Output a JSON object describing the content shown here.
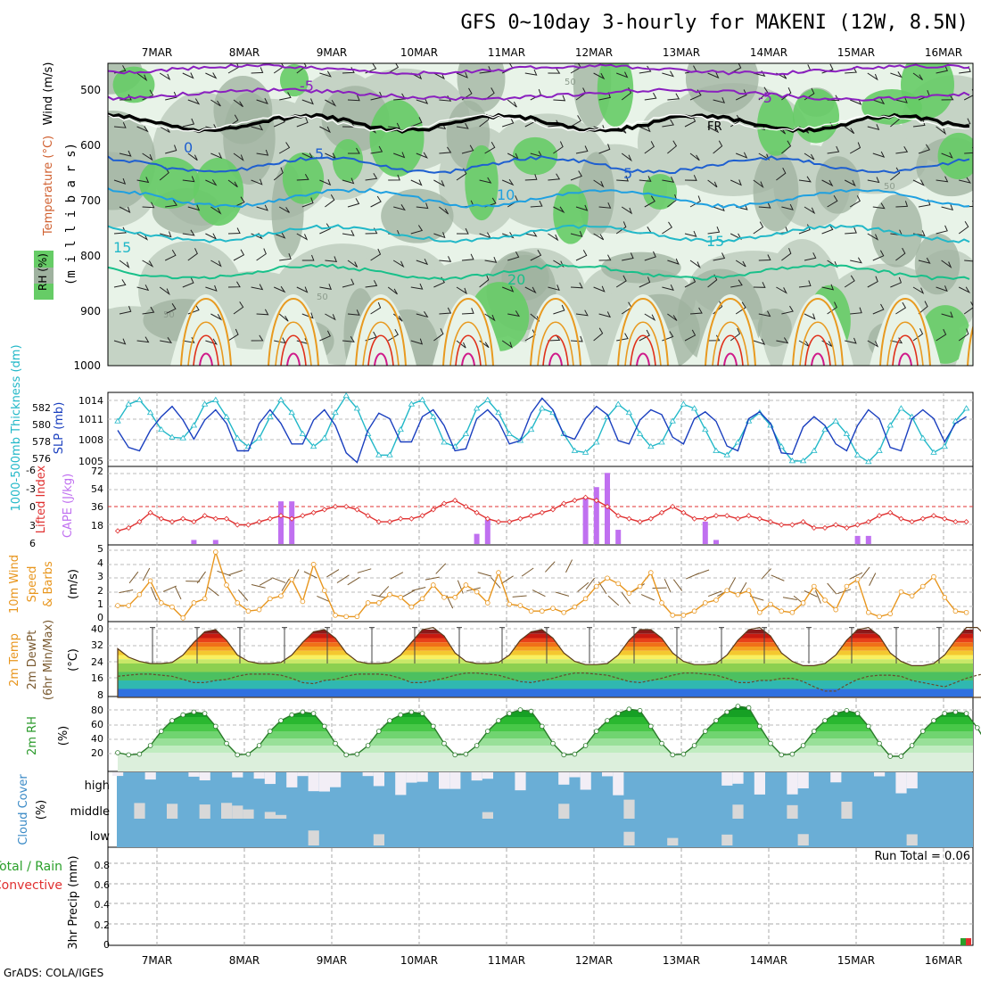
{
  "title": "GFS 0~10day 3-hourly for MAKENI (12W, 8.5N)",
  "footer": "GrADS: COLA/IGES",
  "dates": [
    "7MAR",
    "8MAR",
    "9MAR",
    "10MAR",
    "11MAR",
    "12MAR",
    "13MAR",
    "14MAR",
    "15MAR",
    "16MAR"
  ],
  "colors": {
    "rh_dark": "#9fb29f",
    "rh_mid": "#c5d3c5",
    "rh_light": "#e8f3e8",
    "rh_green": "#66cc66",
    "t_purple": "#8a1fbf",
    "t_black": "#000000",
    "t_blue": "#1e5fd0",
    "t_lightblue": "#1fa0e0",
    "t_cyan": "#22b8c8",
    "t_teal": "#19c08a",
    "t_orange": "#e89a20",
    "t_red": "#e0301a",
    "t_magenta": "#d01a8a",
    "slp": "#1a3fbf",
    "thickness": "#22b8c8",
    "lifted": "#e03030",
    "cape": "#c070f0",
    "wind10": "#e8961e",
    "cloud": "#6aaed6",
    "cloud_gap": "#f2eef6",
    "cloud_gap_low": "#d8d8d8"
  },
  "panel_upper": {
    "y_title": "(m i l l i b a r s)",
    "legend_wind": "Wind (m/s)",
    "legend_temp": "Temperature (°C)",
    "legend_rh": "RH (%)",
    "yticks": [
      "500",
      "600",
      "700",
      "800",
      "900",
      "1000"
    ],
    "contour_labels": {
      "m5a": "-5",
      "m5b": "-5",
      "fr": "FR",
      "z": "0",
      "p5a": "5",
      "p5b": "5",
      "p10": "10",
      "p15a": "15",
      "p15b": "15",
      "p20": "20",
      "rh50a": "50",
      "rh50b": "50",
      "rh50c": "50",
      "rh50d": "50"
    }
  },
  "panel_slp": {
    "label_thickness": "1000-500mb Thickness (dm)",
    "label_slp": "SLP (mb)",
    "left_ticks": [
      "582",
      "580",
      "578",
      "576"
    ],
    "right_ticks": [
      "1014",
      "1011",
      "1008",
      "1005"
    ]
  },
  "panel_cape": {
    "label_li": "Lifted Index",
    "label_cape": "CAPE (J/kg)",
    "left_ticks": [
      "-6",
      "-3",
      "0",
      "3",
      "6"
    ],
    "right_ticks": [
      "72",
      "54",
      "36",
      "18"
    ]
  },
  "panel_wind": {
    "label_1": "10m Wind",
    "label_2": "Speed",
    "label_3": "& Barbs",
    "unit": "(m/s)",
    "ticks": [
      "5",
      "4",
      "3",
      "2",
      "1",
      "0"
    ]
  },
  "panel_temp": {
    "label_1": "2m Temp",
    "label_2": "2m DewPt",
    "label_3": "(6hr Min/Max)",
    "unit": "(°C)",
    "ticks": [
      "40",
      "32",
      "24",
      "16",
      "8"
    ]
  },
  "panel_rh": {
    "label": "2m RH",
    "unit": "(%)",
    "ticks": [
      "80",
      "60",
      "40",
      "20"
    ]
  },
  "panel_cloud": {
    "label": "Cloud Cover",
    "unit": "(%)",
    "levels": [
      "high",
      "middle",
      "low"
    ]
  },
  "panel_precip": {
    "label_total": "Total / Rain",
    "label_conv": "Convective",
    "label_axis": "3hr Precip (mm)",
    "run_total": "Run Total = 0.06",
    "ticks": [
      "0.8",
      "0.6",
      "0.4",
      "0.2",
      "0"
    ]
  },
  "chart_data": [
    {
      "type": "line",
      "title": "SLP (mb) / 1000-500mb Thickness (dm)",
      "x_unit": "3-hourly steps from 7MAR 00Z",
      "series": [
        {
          "name": "SLP (mb)",
          "values": [
            1009.5,
            1007,
            1006.5,
            1009.5,
            1011.5,
            1013,
            1011,
            1008.2,
            1011,
            1012.5,
            1010.5,
            1006.5,
            1006.5,
            1010.5,
            1012.5,
            1010.5,
            1007.5,
            1007.5,
            1011,
            1012.5,
            1010.2,
            1006.2,
            1004.8,
            1009.5,
            1012,
            1011.2,
            1007.8,
            1007.8,
            1011.5,
            1012.5,
            1010.2,
            1006.5,
            1006.8,
            1011.2,
            1012.5,
            1010.8,
            1007.5,
            1008,
            1012,
            1014.2,
            1012.5,
            1008.8,
            1008.2,
            1011.2,
            1013,
            1011.8,
            1008,
            1007.5,
            1011,
            1012.5,
            1011.8,
            1008.5,
            1007.5,
            1011.2,
            1012.2,
            1010.8,
            1007.2,
            1006.5,
            1011.2,
            1012.2,
            1010.5,
            1006.2,
            1006,
            1010,
            1011.5,
            1010.2,
            1007.5,
            1006.5,
            1010.2,
            1012.5,
            1011.2,
            1007,
            1006.5,
            1011.2,
            1012.5,
            1011.2,
            1007.8,
            1010.5,
            1011.5
          ]
        },
        {
          "name": "1000-500mb Thickness (dm)",
          "values": [
            580.5,
            582.5,
            583,
            581.5,
            579.5,
            578.6,
            578.5,
            580,
            582.5,
            583,
            581,
            578.5,
            577.5,
            578.5,
            581,
            583,
            581.5,
            579,
            577.5,
            578.5,
            581.5,
            583.5,
            582,
            579,
            576.5,
            576.5,
            579.5,
            582.5,
            583,
            581,
            578,
            577.5,
            579,
            582,
            583,
            581.5,
            579,
            578.2,
            579.5,
            582,
            581.5,
            579,
            577,
            576.8,
            578,
            581,
            582.5,
            581.5,
            579,
            577.5,
            578,
            580.5,
            582.5,
            582,
            579.5,
            577,
            576.5,
            578,
            580.5,
            581.5,
            580,
            577.5,
            575.8,
            575.8,
            577,
            579.5,
            580.5,
            579,
            576.5,
            575.7,
            577,
            580,
            582,
            581,
            578.5,
            576.8,
            577.5,
            580.5,
            582
          ]
        }
      ]
    },
    {
      "type": "bar",
      "title": "CAPE (J/kg) / Lifted Index",
      "series": [
        {
          "name": "CAPE (J/kg)",
          "values": [
            0,
            0,
            0,
            0,
            0,
            0,
            0,
            4,
            0,
            4,
            0,
            0,
            0,
            0,
            0,
            42,
            42,
            0,
            0,
            0,
            0,
            0,
            0,
            0,
            0,
            0,
            0,
            0,
            0,
            0,
            0,
            0,
            0,
            10,
            24,
            0,
            0,
            0,
            0,
            0,
            0,
            0,
            0,
            46,
            56,
            70,
            14,
            0,
            0,
            0,
            0,
            0,
            0,
            0,
            22,
            4,
            0,
            0,
            0,
            0,
            0,
            0,
            0,
            0,
            0,
            0,
            0,
            0,
            8,
            8,
            0,
            0,
            0,
            0,
            0,
            0,
            0,
            0,
            0
          ]
        },
        {
          "name": "Lifted Index",
          "values": [
            4,
            3.5,
            2.5,
            1,
            2,
            2.5,
            2,
            2.5,
            1.5,
            2,
            2,
            3,
            3,
            2.5,
            2,
            1.5,
            2,
            1.5,
            1,
            0.5,
            0,
            0,
            0.5,
            1.5,
            2.5,
            2.5,
            2,
            2,
            1.5,
            0.5,
            -0.5,
            -1,
            0,
            1,
            2,
            2.5,
            2.5,
            2,
            1.5,
            1,
            0.5,
            -0.5,
            -1,
            -1.5,
            -1,
            0,
            1.5,
            2,
            2.5,
            2,
            1,
            0,
            1,
            2,
            2,
            1.5,
            1.5,
            2,
            1.5,
            2,
            2.5,
            3,
            3,
            2.5,
            3.5,
            3.5,
            3,
            3.5,
            3,
            2.5,
            1.5,
            1,
            2,
            2.5,
            2,
            1.5,
            2,
            2.5,
            2.5
          ]
        }
      ]
    },
    {
      "type": "line",
      "title": "10m Wind Speed (m/s)",
      "series": [
        {
          "name": "10m Wind Speed",
          "values": [
            1.1,
            1.1,
            1.9,
            2.9,
            1.3,
            1.0,
            0.2,
            1.3,
            1.6,
            5.0,
            2.6,
            1.3,
            0.7,
            0.8,
            1.6,
            1.8,
            3.0,
            1.4,
            4.1,
            2.2,
            0.4,
            0.3,
            0.3,
            1.3,
            1.3,
            1.9,
            1.7,
            1.0,
            1.6,
            2.6,
            1.7,
            1.7,
            2.6,
            2.1,
            1.3,
            3.5,
            1.2,
            1.1,
            0.7,
            0.7,
            0.9,
            0.6,
            1.0,
            1.6,
            2.5,
            3.1,
            2.7,
            2.0,
            2.5,
            3.5,
            1.3,
            0.4,
            0.4,
            0.7,
            1.3,
            1.5,
            2.2,
            1.9,
            2.2,
            0.6,
            1.2,
            0.7,
            0.6,
            1.3,
            2.5,
            1.5,
            0.8,
            2.5,
            3.0,
            0.6,
            0.3,
            0.5,
            2.1,
            1.8,
            2.5,
            3.2,
            1.7,
            0.7,
            0.6
          ]
        }
      ]
    },
    {
      "type": "area",
      "title": "2m Temp / 2m DewPt (°C)",
      "series": [
        {
          "name": "2m Temp",
          "values": [
            31,
            27,
            25,
            24,
            24,
            24.5,
            28,
            34,
            39,
            40,
            35,
            28,
            25,
            24,
            24,
            24.5,
            28,
            34,
            39,
            40,
            36,
            29,
            25,
            24,
            24,
            24.5,
            28,
            34,
            40,
            41,
            37,
            29,
            25,
            24,
            24,
            24.5,
            28,
            35,
            39,
            40,
            36,
            29,
            25,
            23.5,
            23.5,
            24,
            28,
            35,
            40,
            40,
            36,
            29,
            25,
            23.5,
            23.5,
            24,
            28,
            35,
            40,
            41,
            37,
            29,
            25,
            23,
            23,
            24,
            28,
            35,
            40,
            41,
            37,
            29,
            25,
            23,
            23,
            24,
            28,
            35,
            41,
            41,
            36,
            28,
            24,
            22
          ]
        },
        {
          "name": "2m DewPt",
          "values": [
            18,
            18.5,
            19,
            19,
            18.5,
            18,
            16.5,
            15,
            15,
            16,
            16.5,
            18,
            19,
            19,
            19,
            18.5,
            17,
            15,
            14.5,
            16,
            16.5,
            18,
            19,
            19,
            19,
            18.5,
            17,
            15,
            15,
            16,
            17,
            18.5,
            19.5,
            19.5,
            19,
            18.5,
            17,
            15.5,
            15,
            16,
            17,
            18.5,
            19.5,
            19.5,
            19,
            18.5,
            17,
            15.5,
            15,
            16,
            17,
            18.5,
            19.5,
            19.5,
            19,
            18.5,
            17,
            15,
            15,
            16,
            16,
            17,
            17,
            15.5,
            13,
            11,
            11,
            14,
            16.5,
            18,
            18.5,
            18.5,
            18,
            16,
            15,
            14,
            13,
            15,
            17,
            18.5,
            19.5,
            19,
            18
          ]
        }
      ]
    },
    {
      "type": "area",
      "title": "2m RH (%)",
      "series": [
        {
          "name": "2m RH",
          "values": [
            25,
            22,
            23,
            35,
            55,
            70,
            78,
            82,
            80,
            62,
            38,
            22,
            23,
            35,
            55,
            70,
            78,
            82,
            80,
            62,
            38,
            22,
            23,
            35,
            55,
            70,
            78,
            82,
            80,
            62,
            38,
            22,
            23,
            35,
            55,
            70,
            80,
            85,
            83,
            62,
            38,
            22,
            23,
            35,
            55,
            70,
            80,
            86,
            84,
            62,
            38,
            22,
            23,
            35,
            55,
            70,
            82,
            90,
            88,
            62,
            38,
            22,
            23,
            35,
            55,
            70,
            80,
            84,
            80,
            62,
            38,
            20,
            20,
            35,
            55,
            70,
            80,
            82,
            80,
            60,
            35,
            22,
            45,
            65,
            75,
            82
          ]
        }
      ]
    }
  ]
}
